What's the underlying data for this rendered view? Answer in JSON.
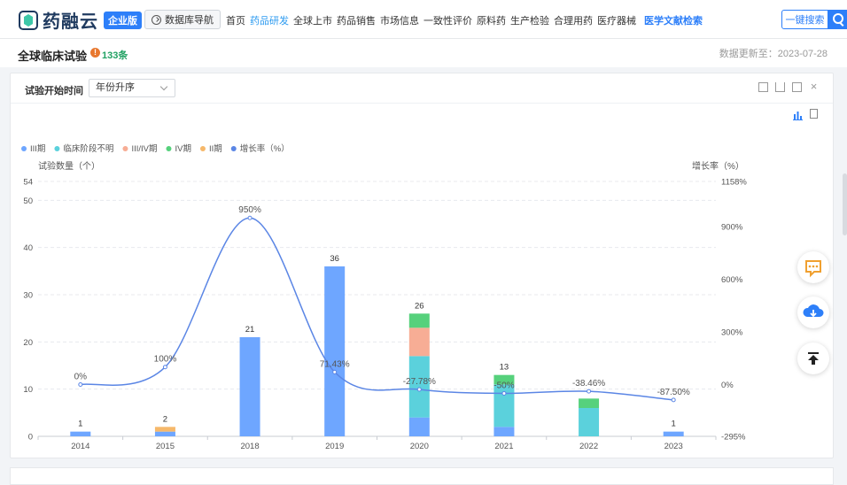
{
  "header": {
    "logo_text": "药融云",
    "edition": "企业版",
    "db_nav": "数据库导航",
    "nav": [
      "首页",
      "药品研发",
      "全球上市",
      "药品销售",
      "市场信息",
      "一致性评价",
      "原料药",
      "生产检验",
      "合理用药",
      "医疗器械"
    ],
    "nav_active_index": 1,
    "nav_special": "医学文献检索",
    "search_button": "一键搜索"
  },
  "subheader": {
    "title": "全球临床试验",
    "count": "133条",
    "updated": "数据更新至：2023-07-28"
  },
  "filter": {
    "label": "试验开始时间",
    "sort_value": "年份升序"
  },
  "colors": {
    "phase3": "#6ea6ff",
    "unknown": "#5bd1dc",
    "phase34": "#f7ad95",
    "phase4": "#56d17c",
    "phase2": "#f6b86a",
    "growth": "#5b86e5",
    "accent": "#2d7ff9"
  },
  "icons": [
    "expand-icon",
    "download-icon",
    "share-icon",
    "close-icon",
    "bar-chart-icon",
    "table-icon",
    "chat-icon",
    "cloud-download-icon",
    "back-to-top-icon"
  ],
  "chart_data": {
    "type": "bar",
    "stacked": true,
    "categories": [
      "2014",
      "2015",
      "2018",
      "2019",
      "2020",
      "2021",
      "2022",
      "2023"
    ],
    "series": [
      {
        "name": "III期",
        "color": "#6ea6ff",
        "values": [
          1,
          1,
          21,
          36,
          4,
          2,
          0,
          1
        ]
      },
      {
        "name": "临床阶段不明",
        "color": "#5bd1dc",
        "values": [
          0,
          0,
          0,
          0,
          13,
          9,
          6,
          0
        ]
      },
      {
        "name": "III/IV期",
        "color": "#f7ad95",
        "values": [
          0,
          0,
          0,
          0,
          6,
          0,
          0,
          0
        ]
      },
      {
        "name": "IV期",
        "color": "#56d17c",
        "values": [
          0,
          0,
          0,
          0,
          3,
          2,
          2,
          0
        ]
      },
      {
        "name": "II期",
        "color": "#f6b86a",
        "values": [
          0,
          1,
          0,
          0,
          0,
          0,
          0,
          0
        ]
      }
    ],
    "totals": [
      "1",
      "2",
      "21",
      "36",
      "26",
      "13",
      "",
      "1"
    ],
    "line_series": {
      "name": "增长率（%）",
      "color": "#5b86e5",
      "values": [
        0,
        100,
        950,
        71.43,
        -27.78,
        -50,
        -38.46,
        -87.5
      ],
      "labels": [
        "0%",
        "100%",
        "950%",
        "71.43%",
        "-27.78%",
        "-50%",
        "-38.46%",
        "-87.50%"
      ]
    },
    "y_left": {
      "label": "试验数量（个）",
      "ticks": [
        "0",
        "10",
        "20",
        "30",
        "40",
        "50",
        "54"
      ],
      "range": [
        0,
        54
      ]
    },
    "y_right": {
      "label": "增长率（%）",
      "ticks": [
        "-295%",
        "0%",
        "300%",
        "600%",
        "900%",
        "1158%"
      ],
      "range": [
        -295,
        1158
      ]
    },
    "legend_position": "top-left",
    "grid": true
  }
}
